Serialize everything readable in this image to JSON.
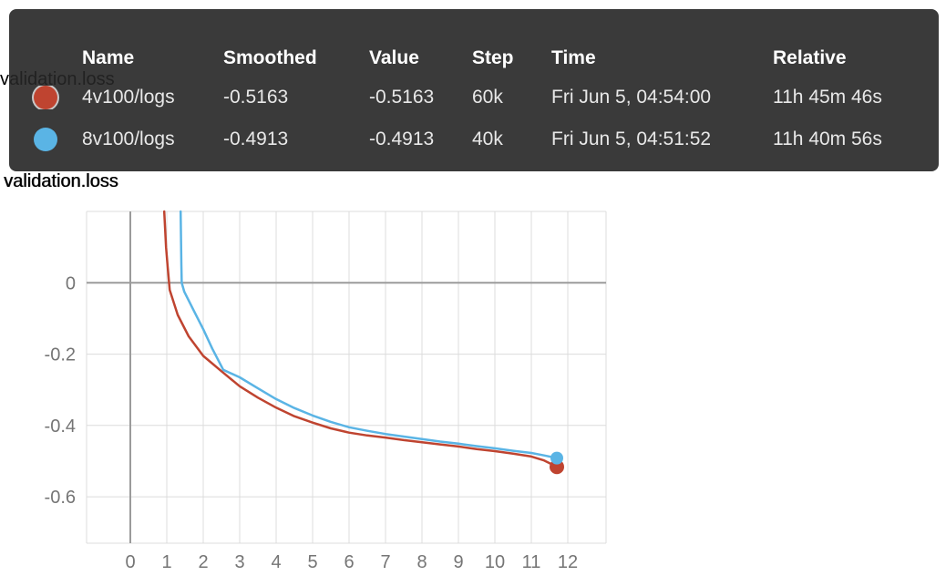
{
  "background_title": "validation.loss",
  "chart_title": "validation.loss",
  "tooltip": {
    "columns": [
      "Name",
      "Smoothed",
      "Value",
      "Step",
      "Time",
      "Relative"
    ],
    "rows": [
      {
        "highlighted": true,
        "color": "#bf4430",
        "name": "4v100/logs",
        "smoothed": "-0.5163",
        "value": "-0.5163",
        "step": "60k",
        "time": "Fri Jun 5, 04:54:00",
        "relative": "11h 45m 46s"
      },
      {
        "highlighted": false,
        "color": "#5ab4e5",
        "name": "8v100/logs",
        "smoothed": "-0.4913",
        "value": "-0.4913",
        "step": "40k",
        "time": "Fri Jun 5, 04:51:52",
        "relative": "11h 40m 56s"
      }
    ]
  },
  "chart_data": {
    "type": "line",
    "title": "validation.loss",
    "xlabel": "",
    "ylabel": "",
    "xlim": [
      -1.2,
      13.05
    ],
    "ylim": [
      -0.73,
      0.2
    ],
    "x_ticks": [
      0,
      1,
      2,
      3,
      4,
      5,
      6,
      7,
      8,
      9,
      10,
      11,
      12
    ],
    "y_ticks": [
      0,
      -0.2,
      -0.4,
      -0.6
    ],
    "grid": true,
    "legend_position": "none",
    "grid_color": "#dcdcdc",
    "axis_color": "#9b9b9b",
    "tick_color": "#757575",
    "series": [
      {
        "name": "4v100/logs",
        "color": "#bf4430",
        "dot_r": 8,
        "end_dot": [
          11.7,
          -0.516
        ],
        "points": [
          [
            0.93,
            0.2
          ],
          [
            0.98,
            0.1
          ],
          [
            1.02,
            0.05
          ],
          [
            1.08,
            -0.02
          ],
          [
            1.3,
            -0.09
          ],
          [
            1.6,
            -0.15
          ],
          [
            2.0,
            -0.205
          ],
          [
            2.5,
            -0.248
          ],
          [
            3.0,
            -0.29
          ],
          [
            3.5,
            -0.322
          ],
          [
            4.0,
            -0.35
          ],
          [
            4.5,
            -0.374
          ],
          [
            5.0,
            -0.392
          ],
          [
            5.5,
            -0.408
          ],
          [
            6.0,
            -0.42
          ],
          [
            6.5,
            -0.428
          ],
          [
            7.0,
            -0.434
          ],
          [
            7.5,
            -0.441
          ],
          [
            8.0,
            -0.447
          ],
          [
            8.5,
            -0.453
          ],
          [
            9.0,
            -0.459
          ],
          [
            9.5,
            -0.466
          ],
          [
            10.0,
            -0.472
          ],
          [
            10.5,
            -0.479
          ],
          [
            11.0,
            -0.487
          ],
          [
            11.35,
            -0.498
          ],
          [
            11.7,
            -0.516
          ]
        ]
      },
      {
        "name": "8v100/logs",
        "color": "#5ab4e5",
        "dot_r": 7,
        "end_dot": [
          11.7,
          -0.4913
        ],
        "points": [
          [
            1.38,
            0.2
          ],
          [
            1.4,
            0.05
          ],
          [
            1.41,
            0.0
          ],
          [
            1.48,
            -0.025
          ],
          [
            1.75,
            -0.08
          ],
          [
            2.0,
            -0.13
          ],
          [
            2.25,
            -0.185
          ],
          [
            2.55,
            -0.244
          ],
          [
            3.0,
            -0.265
          ],
          [
            3.5,
            -0.296
          ],
          [
            4.0,
            -0.326
          ],
          [
            4.5,
            -0.351
          ],
          [
            5.0,
            -0.372
          ],
          [
            5.5,
            -0.39
          ],
          [
            6.0,
            -0.405
          ],
          [
            6.5,
            -0.415
          ],
          [
            7.0,
            -0.424
          ],
          [
            7.5,
            -0.431
          ],
          [
            8.0,
            -0.438
          ],
          [
            8.5,
            -0.445
          ],
          [
            9.0,
            -0.451
          ],
          [
            9.5,
            -0.458
          ],
          [
            10.0,
            -0.464
          ],
          [
            10.5,
            -0.471
          ],
          [
            11.0,
            -0.477
          ],
          [
            11.35,
            -0.484
          ],
          [
            11.7,
            -0.4913
          ]
        ]
      }
    ]
  }
}
